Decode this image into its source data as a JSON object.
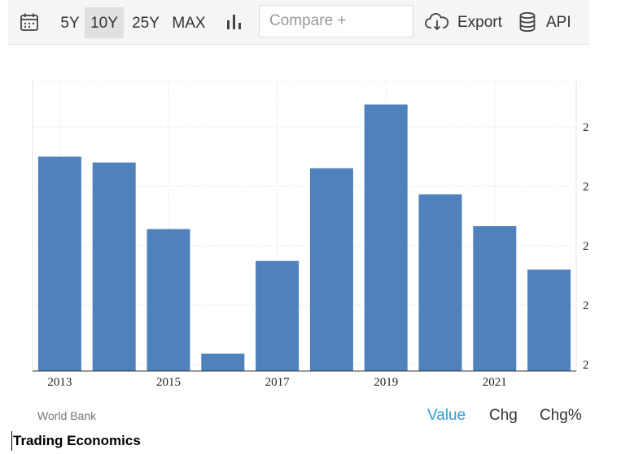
{
  "toolbar": {
    "ranges": [
      "5Y",
      "10Y",
      "25Y",
      "MAX"
    ],
    "active_range": "10Y",
    "compare_placeholder": "Compare +",
    "export_label": "Export",
    "api_label": "API"
  },
  "chart_data": {
    "type": "bar",
    "x": [
      2013,
      2014,
      2015,
      2016,
      2017,
      2018,
      2019,
      2020,
      2021,
      2022
    ],
    "values": [
      2.74,
      2.72,
      2.49,
      2.06,
      2.38,
      2.7,
      2.92,
      2.61,
      2.5,
      2.35
    ],
    "xtick_labels": [
      "2013",
      "2015",
      "2017",
      "2019",
      "2021"
    ],
    "ytick_labels": [
      "2",
      "2",
      "2",
      "2",
      "2"
    ],
    "ylim": [
      2.0,
      3.0
    ],
    "grid": true,
    "bar_color": "#4f81bd"
  },
  "footer": {
    "source": "World Bank",
    "tabs": [
      "Value",
      "Chg",
      "Chg%"
    ],
    "active_tab": "Value",
    "brand": "Trading Economics"
  },
  "colors": {
    "accent": "#2b9bdb",
    "bar": "#4f81bd"
  }
}
